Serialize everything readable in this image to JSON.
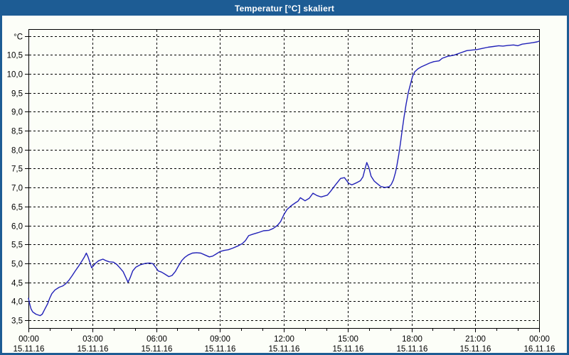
{
  "window": {
    "title": "Temperatur [°C] skaliert"
  },
  "colors": {
    "frame": "#1d5c94",
    "titlebar_text": "#ffffff",
    "background": "#fcfef8",
    "grid": "#000000",
    "axis": "#000000",
    "line": "#2121b8"
  },
  "chart_data": {
    "type": "line",
    "title": "Temperatur [°C] skaliert",
    "ylabel": "°C",
    "grid": "dashed",
    "legend": "none",
    "y_axis": {
      "min": 3.5,
      "max": 11.0,
      "step": 0.5,
      "ticks": [
        {
          "value": 3.5,
          "label": "3,5"
        },
        {
          "value": 4.0,
          "label": "4,0"
        },
        {
          "value": 4.5,
          "label": "4,5"
        },
        {
          "value": 5.0,
          "label": "5,0"
        },
        {
          "value": 5.5,
          "label": "5,5"
        },
        {
          "value": 6.0,
          "label": "6,0"
        },
        {
          "value": 6.5,
          "label": "6,5"
        },
        {
          "value": 7.0,
          "label": "7,0"
        },
        {
          "value": 7.5,
          "label": "7,5"
        },
        {
          "value": 8.0,
          "label": "8,0"
        },
        {
          "value": 8.5,
          "label": "8,5"
        },
        {
          "value": 9.0,
          "label": "9,0"
        },
        {
          "value": 9.5,
          "label": "9,5"
        },
        {
          "value": 10.0,
          "label": "10,0"
        },
        {
          "value": 10.5,
          "label": "10,5"
        },
        {
          "value": 11.0,
          "label": "°C"
        }
      ]
    },
    "x_axis": {
      "start_hour": 0,
      "end_hour": 24,
      "minor_tick_every_hours": 1,
      "major_ticks": [
        {
          "hour": 0,
          "time": "00:00",
          "date": "15.11.16"
        },
        {
          "hour": 3,
          "time": "03:00",
          "date": "15.11.16"
        },
        {
          "hour": 6,
          "time": "06:00",
          "date": "15.11.16"
        },
        {
          "hour": 9,
          "time": "09:00",
          "date": "15.11.16"
        },
        {
          "hour": 12,
          "time": "12:00",
          "date": "15.11.16"
        },
        {
          "hour": 15,
          "time": "15:00",
          "date": "15.11.16"
        },
        {
          "hour": 18,
          "time": "18:00",
          "date": "15.11.16"
        },
        {
          "hour": 21,
          "time": "21:00",
          "date": "15.11.16"
        },
        {
          "hour": 24,
          "time": "00:00",
          "date": "16.11.16"
        }
      ]
    },
    "series": [
      {
        "name": "Temperatur",
        "unit": "°C",
        "color": "#2121b8",
        "points": [
          [
            0.0,
            4.08
          ],
          [
            0.05,
            3.95
          ],
          [
            0.12,
            3.8
          ],
          [
            0.2,
            3.72
          ],
          [
            0.35,
            3.66
          ],
          [
            0.55,
            3.62
          ],
          [
            0.65,
            3.66
          ],
          [
            0.75,
            3.77
          ],
          [
            0.9,
            3.93
          ],
          [
            1.0,
            4.08
          ],
          [
            1.1,
            4.2
          ],
          [
            1.25,
            4.3
          ],
          [
            1.45,
            4.37
          ],
          [
            1.6,
            4.4
          ],
          [
            1.75,
            4.46
          ],
          [
            1.9,
            4.55
          ],
          [
            2.05,
            4.67
          ],
          [
            2.2,
            4.8
          ],
          [
            2.35,
            4.92
          ],
          [
            2.5,
            5.05
          ],
          [
            2.62,
            5.16
          ],
          [
            2.72,
            5.27
          ],
          [
            2.8,
            5.17
          ],
          [
            2.9,
            5.0
          ],
          [
            2.97,
            4.88
          ],
          [
            3.05,
            4.93
          ],
          [
            3.15,
            5.0
          ],
          [
            3.3,
            5.07
          ],
          [
            3.5,
            5.11
          ],
          [
            3.65,
            5.07
          ],
          [
            3.8,
            5.04
          ],
          [
            4.0,
            5.03
          ],
          [
            4.15,
            4.97
          ],
          [
            4.3,
            4.88
          ],
          [
            4.45,
            4.78
          ],
          [
            4.6,
            4.6
          ],
          [
            4.68,
            4.5
          ],
          [
            4.78,
            4.62
          ],
          [
            4.9,
            4.8
          ],
          [
            5.05,
            4.9
          ],
          [
            5.25,
            4.96
          ],
          [
            5.5,
            5.0
          ],
          [
            5.7,
            5.01
          ],
          [
            5.85,
            4.99
          ],
          [
            6.0,
            4.88
          ],
          [
            6.1,
            4.8
          ],
          [
            6.25,
            4.77
          ],
          [
            6.4,
            4.72
          ],
          [
            6.6,
            4.65
          ],
          [
            6.75,
            4.68
          ],
          [
            6.9,
            4.78
          ],
          [
            7.05,
            4.93
          ],
          [
            7.2,
            5.07
          ],
          [
            7.35,
            5.16
          ],
          [
            7.5,
            5.22
          ],
          [
            7.7,
            5.27
          ],
          [
            7.9,
            5.28
          ],
          [
            8.1,
            5.27
          ],
          [
            8.3,
            5.22
          ],
          [
            8.5,
            5.17
          ],
          [
            8.65,
            5.19
          ],
          [
            8.8,
            5.24
          ],
          [
            9.0,
            5.31
          ],
          [
            9.2,
            5.34
          ],
          [
            9.4,
            5.36
          ],
          [
            9.6,
            5.4
          ],
          [
            9.85,
            5.46
          ],
          [
            10.05,
            5.52
          ],
          [
            10.2,
            5.6
          ],
          [
            10.35,
            5.73
          ],
          [
            10.55,
            5.77
          ],
          [
            10.8,
            5.81
          ],
          [
            11.05,
            5.86
          ],
          [
            11.3,
            5.87
          ],
          [
            11.5,
            5.92
          ],
          [
            11.7,
            6.0
          ],
          [
            11.85,
            6.1
          ],
          [
            12.0,
            6.28
          ],
          [
            12.15,
            6.42
          ],
          [
            12.35,
            6.52
          ],
          [
            12.55,
            6.6
          ],
          [
            12.67,
            6.64
          ],
          [
            12.78,
            6.73
          ],
          [
            13.0,
            6.65
          ],
          [
            13.2,
            6.72
          ],
          [
            13.37,
            6.85
          ],
          [
            13.55,
            6.79
          ],
          [
            13.75,
            6.75
          ],
          [
            14.05,
            6.8
          ],
          [
            14.2,
            6.9
          ],
          [
            14.4,
            7.05
          ],
          [
            14.67,
            7.24
          ],
          [
            14.85,
            7.26
          ],
          [
            15.05,
            7.11
          ],
          [
            15.2,
            7.07
          ],
          [
            15.4,
            7.12
          ],
          [
            15.6,
            7.18
          ],
          [
            15.72,
            7.28
          ],
          [
            15.82,
            7.5
          ],
          [
            15.9,
            7.66
          ],
          [
            16.0,
            7.52
          ],
          [
            16.1,
            7.3
          ],
          [
            16.25,
            7.17
          ],
          [
            16.4,
            7.1
          ],
          [
            16.55,
            7.03
          ],
          [
            16.75,
            7.0
          ],
          [
            16.95,
            7.02
          ],
          [
            17.05,
            7.08
          ],
          [
            17.15,
            7.2
          ],
          [
            17.25,
            7.4
          ],
          [
            17.32,
            7.6
          ],
          [
            17.4,
            7.85
          ],
          [
            17.48,
            8.15
          ],
          [
            17.55,
            8.45
          ],
          [
            17.65,
            8.85
          ],
          [
            17.75,
            9.2
          ],
          [
            17.85,
            9.5
          ],
          [
            17.95,
            9.72
          ],
          [
            18.05,
            9.93
          ],
          [
            18.15,
            10.05
          ],
          [
            18.3,
            10.13
          ],
          [
            18.45,
            10.18
          ],
          [
            18.65,
            10.23
          ],
          [
            18.85,
            10.28
          ],
          [
            19.05,
            10.32
          ],
          [
            19.3,
            10.34
          ],
          [
            19.45,
            10.41
          ],
          [
            19.7,
            10.46
          ],
          [
            20.0,
            10.49
          ],
          [
            20.3,
            10.55
          ],
          [
            20.6,
            10.61
          ],
          [
            20.9,
            10.63
          ],
          [
            21.1,
            10.64
          ],
          [
            21.35,
            10.67
          ],
          [
            21.6,
            10.7
          ],
          [
            21.85,
            10.72
          ],
          [
            22.1,
            10.74
          ],
          [
            22.3,
            10.73
          ],
          [
            22.55,
            10.75
          ],
          [
            22.8,
            10.76
          ],
          [
            23.0,
            10.74
          ],
          [
            23.2,
            10.78
          ],
          [
            23.45,
            10.8
          ],
          [
            23.7,
            10.82
          ],
          [
            23.9,
            10.84
          ],
          [
            24.0,
            10.86
          ]
        ]
      }
    ]
  }
}
